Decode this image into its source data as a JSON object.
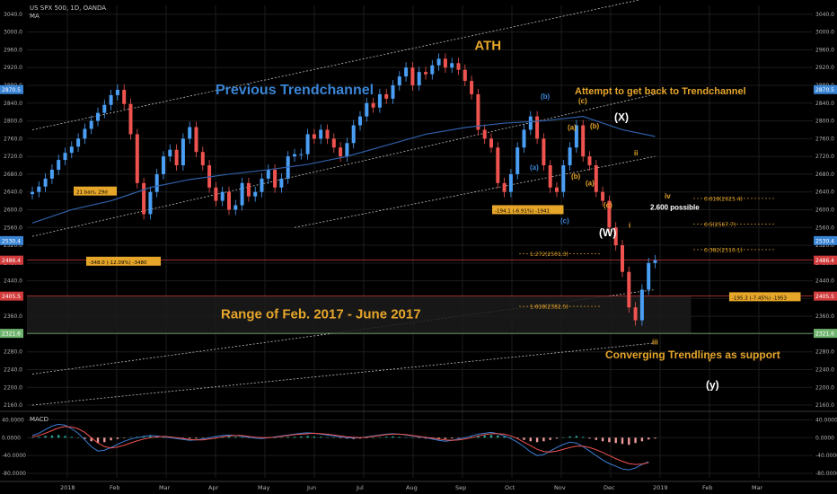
{
  "header": {
    "symbol_line": "US SPX 500, 1D, OANDA",
    "indicator": "MA",
    "macd_label": "MACD"
  },
  "colors": {
    "background": "#000000",
    "up_candle": "#4a9ff5",
    "down_candle": "#ef5350",
    "ma_line": "#2f5fa8",
    "annotation_gold": "#e6a62a",
    "annotation_blue": "#3a85d6",
    "grid": "#1c1c1c",
    "axis_text": "#b0b0b0",
    "trendline": "#bfbfbf",
    "support_line_red": "#d23b3b",
    "support_line_green": "#6fb46f",
    "macd_line": "#3a7fd5",
    "signal_line": "#ef5350"
  },
  "chart_data": {
    "type": "line",
    "title": "US SPX 500, 1D, OANDA",
    "x": [
      "2018",
      "Feb",
      "Mar",
      "Apr",
      "May",
      "Jun",
      "Jul",
      "Aug",
      "Sep",
      "Oct",
      "Nov",
      "Dec",
      "2019",
      "Feb",
      "Mar"
    ],
    "ylim": [
      2150,
      3060
    ],
    "y_ticks": [
      "3040.0",
      "3000.0",
      "2960.0",
      "2920.0",
      "2880.0",
      "2840.0",
      "2800.0",
      "2760.0",
      "2720.0",
      "2680.0",
      "2640.0",
      "2600.0",
      "2560.0",
      "2520.0",
      "2480.0",
      "2440.0",
      "2400.0",
      "2360.0",
      "2320.0",
      "2280.0",
      "2240.0",
      "2200.0",
      "2160.0"
    ],
    "right_badges": [
      {
        "label": "2870.5",
        "value": 2870.5,
        "color": "#3a85d6"
      },
      {
        "label": "2530.4",
        "value": 2530.4,
        "color": "#3a85d6"
      },
      {
        "label": "2486.4",
        "value": 2486.4,
        "color": "#d23b3b"
      },
      {
        "label": "2405.5",
        "value": 2405.5,
        "color": "#d23b3b"
      },
      {
        "label": "2321.6",
        "value": 2321.6,
        "color": "#6fb46f"
      }
    ],
    "series": [
      {
        "name": "US SPX 500",
        "points": [
          [
            0,
            2640
          ],
          [
            1,
            2652
          ],
          [
            2,
            2670
          ],
          [
            3,
            2690
          ],
          [
            4,
            2712
          ],
          [
            5,
            2728
          ],
          [
            6,
            2742
          ],
          [
            7,
            2760
          ],
          [
            8,
            2782
          ],
          [
            9,
            2800
          ],
          [
            10,
            2818
          ],
          [
            11,
            2836
          ],
          [
            12,
            2858
          ],
          [
            13,
            2870
          ],
          [
            14,
            2838
          ],
          [
            15,
            2770
          ],
          [
            16,
            2660
          ],
          [
            17,
            2590
          ],
          [
            18,
            2640
          ],
          [
            19,
            2680
          ],
          [
            20,
            2720
          ],
          [
            21,
            2735
          ],
          [
            22,
            2700
          ],
          [
            23,
            2760
          ],
          [
            24,
            2786
          ],
          [
            25,
            2730
          ],
          [
            26,
            2700
          ],
          [
            27,
            2650
          ],
          [
            28,
            2620
          ],
          [
            29,
            2640
          ],
          [
            30,
            2600
          ],
          [
            31,
            2610
          ],
          [
            32,
            2660
          ],
          [
            33,
            2630
          ],
          [
            34,
            2640
          ],
          [
            35,
            2670
          ],
          [
            36,
            2690
          ],
          [
            37,
            2650
          ],
          [
            38,
            2670
          ],
          [
            39,
            2720
          ],
          [
            40,
            2725
          ],
          [
            41,
            2725
          ],
          [
            42,
            2770
          ],
          [
            43,
            2760
          ],
          [
            44,
            2780
          ],
          [
            45,
            2760
          ],
          [
            46,
            2740
          ],
          [
            47,
            2720
          ],
          [
            48,
            2750
          ],
          [
            49,
            2790
          ],
          [
            50,
            2810
          ],
          [
            51,
            2840
          ],
          [
            52,
            2830
          ],
          [
            53,
            2860
          ],
          [
            54,
            2850
          ],
          [
            55,
            2880
          ],
          [
            56,
            2900
          ],
          [
            57,
            2920
          ],
          [
            58,
            2880
          ],
          [
            59,
            2910
          ],
          [
            60,
            2905
          ],
          [
            61,
            2925
          ],
          [
            62,
            2940
          ],
          [
            63,
            2920
          ],
          [
            64,
            2930
          ],
          [
            65,
            2915
          ],
          [
            66,
            2890
          ],
          [
            67,
            2860
          ],
          [
            68,
            2780
          ],
          [
            69,
            2760
          ],
          [
            70,
            2740
          ],
          [
            71,
            2660
          ],
          [
            72,
            2640
          ],
          [
            73,
            2680
          ],
          [
            74,
            2740
          ],
          [
            75,
            2780
          ],
          [
            76,
            2810
          ],
          [
            77,
            2760
          ],
          [
            78,
            2700
          ],
          [
            79,
            2650
          ],
          [
            80,
            2640
          ],
          [
            81,
            2700
          ],
          [
            82,
            2740
          ],
          [
            83,
            2790
          ],
          [
            84,
            2720
          ],
          [
            85,
            2700
          ],
          [
            86,
            2640
          ],
          [
            87,
            2620
          ],
          [
            88,
            2560
          ],
          [
            89,
            2520
          ],
          [
            90,
            2460
          ],
          [
            91,
            2380
          ],
          [
            92,
            2351
          ],
          [
            93,
            2420
          ],
          [
            94,
            2480
          ],
          [
            95,
            2486
          ]
        ]
      },
      {
        "name": "MA",
        "points": [
          [
            0,
            2570
          ],
          [
            6,
            2600
          ],
          [
            12,
            2620
          ],
          [
            18,
            2650
          ],
          [
            24,
            2668
          ],
          [
            30,
            2680
          ],
          [
            36,
            2690
          ],
          [
            42,
            2702
          ],
          [
            48,
            2720
          ],
          [
            54,
            2745
          ],
          [
            60,
            2770
          ],
          [
            66,
            2785
          ],
          [
            72,
            2795
          ],
          [
            78,
            2800
          ],
          [
            84,
            2810
          ],
          [
            90,
            2780
          ],
          [
            95,
            2765
          ]
        ]
      }
    ],
    "macd": {
      "ylim": [
        -90,
        55
      ],
      "y_ticks": [
        "40.0000",
        "0.0000",
        "-40.0000",
        "-80.0000"
      ],
      "histogram": [
        0,
        2,
        4,
        5,
        6,
        4,
        2,
        0,
        -3,
        -8,
        -12,
        -10,
        -6,
        -3,
        -1,
        1,
        2,
        3,
        4,
        3,
        2,
        1,
        0,
        -1,
        -2,
        -2,
        -1,
        0,
        1,
        2,
        3,
        2,
        1,
        0,
        -1,
        -2,
        -1,
        0,
        1,
        2,
        2,
        3,
        4,
        3,
        2,
        1,
        0,
        -1,
        -2,
        -3,
        -2,
        -1,
        0,
        1,
        2,
        3,
        2,
        1,
        0,
        -1,
        -2,
        -3,
        -4,
        -3,
        -2,
        -1,
        0,
        2,
        4,
        5,
        6,
        5,
        3,
        1,
        -2,
        -5,
        -8,
        -10,
        -8,
        -5,
        -2,
        1,
        3,
        4,
        2,
        -2,
        -5,
        -8,
        -10,
        -12,
        -14,
        -16,
        -12,
        -8,
        -4,
        -2
      ],
      "macd_line": [
        5,
        10,
        18,
        26,
        30,
        28,
        20,
        10,
        -5,
        -20,
        -30,
        -28,
        -22,
        -15,
        -8,
        -3,
        0,
        3,
        5,
        4,
        2,
        0,
        -2,
        -4,
        -6,
        -5,
        -3,
        0,
        3,
        5,
        6,
        5,
        3,
        1,
        -1,
        -2,
        0,
        2,
        4,
        6,
        8,
        10,
        11,
        10,
        8,
        6,
        4,
        2,
        0,
        -1,
        0,
        2,
        4,
        6,
        8,
        9,
        8,
        6,
        4,
        2,
        0,
        -3,
        -6,
        -8,
        -6,
        -3,
        0,
        4,
        8,
        10,
        12,
        9,
        4,
        -2,
        -10,
        -20,
        -32,
        -40,
        -38,
        -30,
        -22,
        -15,
        -10,
        -12,
        -20,
        -30,
        -40,
        -50,
        -58,
        -64,
        -70,
        -72,
        -68,
        -60,
        -54
      ],
      "signal_line": [
        2,
        5,
        10,
        16,
        22,
        25,
        24,
        20,
        12,
        0,
        -12,
        -20,
        -23,
        -21,
        -17,
        -12,
        -7,
        -3,
        0,
        2,
        3,
        2,
        0,
        -2,
        -4,
        -5,
        -5,
        -3,
        -1,
        2,
        4,
        5,
        5,
        3,
        1,
        0,
        0,
        1,
        3,
        5,
        7,
        8,
        9,
        10,
        9,
        8,
        6,
        4,
        2,
        1,
        0,
        1,
        3,
        5,
        7,
        8,
        8,
        7,
        5,
        3,
        1,
        -1,
        -3,
        -5,
        -6,
        -5,
        -3,
        0,
        4,
        7,
        9,
        9,
        8,
        4,
        -2,
        -10,
        -18,
        -26,
        -31,
        -32,
        -30,
        -26,
        -22,
        -19,
        -19,
        -22,
        -27,
        -33,
        -40,
        -47,
        -53,
        -58,
        -60,
        -59,
        -56
      ]
    },
    "annotations": [
      {
        "text": "ATH",
        "color": "#e6a62a"
      },
      {
        "text": "Previous Trendchannel",
        "color": "#3a85d6"
      },
      {
        "text": "Attempt to get back to Trendchannel",
        "color": "#e6a62a"
      },
      {
        "text": "Range of Feb. 2017 - June 2017",
        "color": "#e6a62a"
      },
      {
        "text": "Converging Trendlines as support",
        "color": "#e6a62a"
      },
      {
        "text": "2.600 possible",
        "color": "#ffffff"
      }
    ],
    "measure_boxes": [
      {
        "text": "21 bars, 29d"
      },
      {
        "text": "-348.0 (-12.09%) -3480"
      },
      {
        "text": "-194.1 (-6.91%) -1941"
      },
      {
        "text": "-195.3 (-7.45%) -1953"
      }
    ],
    "wave_labels": [
      {
        "text": "(b)",
        "color": "#3a85d6"
      },
      {
        "text": "(a)",
        "color": "#3a85d6"
      },
      {
        "text": "(c)",
        "color": "#3a85d6"
      },
      {
        "text": "(a)",
        "color": "#e6a62a"
      },
      {
        "text": "(b)",
        "color": "#e6a62a"
      },
      {
        "text": "(a)",
        "color": "#e6a62a"
      },
      {
        "text": "(b)",
        "color": "#e6a62a"
      },
      {
        "text": "(c)",
        "color": "#e6a62a"
      },
      {
        "text": "(c)",
        "color": "#e6a62a"
      },
      {
        "text": "(W)",
        "color": "#ffffff"
      },
      {
        "text": "(X)",
        "color": "#ffffff"
      },
      {
        "text": "(y)",
        "color": "#ffffff"
      },
      {
        "text": "ii",
        "color": "#e6a62a"
      },
      {
        "text": "i",
        "color": "#e6a62a"
      },
      {
        "text": "iv",
        "color": "#e6a62a"
      },
      {
        "text": "iii",
        "color": "#e6a62a"
      },
      {
        "text": "v",
        "color": "#e6a62a"
      }
    ],
    "fib_levels": [
      {
        "text": "0.618(2625.4)"
      },
      {
        "text": "0.5(2567.7)"
      },
      {
        "text": "0.382(2510.1)"
      },
      {
        "text": "1.272(2501.3)"
      },
      {
        "text": "1.618(2382.5)"
      }
    ]
  }
}
